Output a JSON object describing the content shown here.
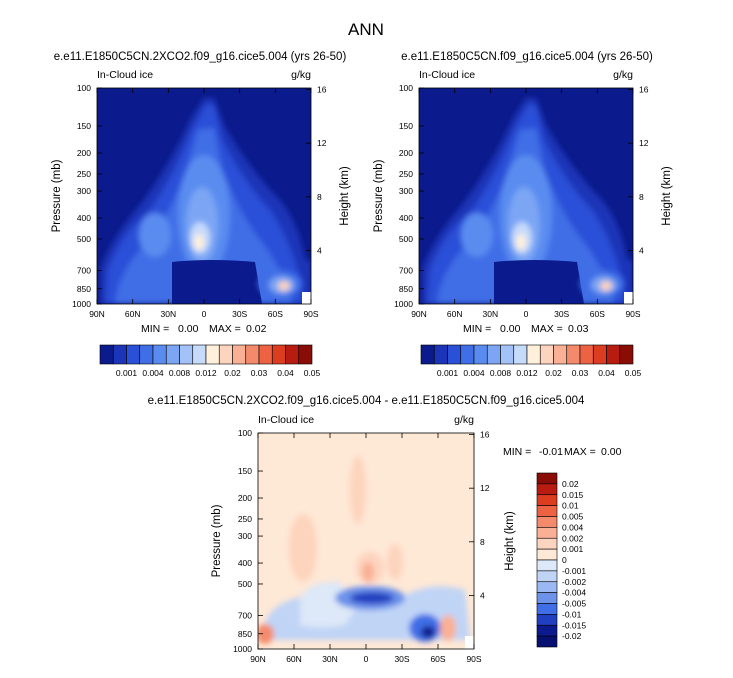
{
  "page_title": "ANN",
  "chart_data": [
    {
      "type": "heatmap",
      "id": "panel1",
      "title": "e.e11.E1850C5CN.2XCO2.f09_g16.cice5.004 (yrs 26-50)",
      "label_left": "In-Cloud ice",
      "label_right": "g/kg",
      "xlabel": "",
      "ylabel": "Pressure (mb)",
      "ylabel_right": "Height (km)",
      "x_ticks": [
        "90N",
        "60N",
        "30N",
        "0",
        "30S",
        "60S",
        "90S"
      ],
      "y_ticks": [
        "100",
        "150",
        "200",
        "250",
        "300",
        "400",
        "500",
        "700",
        "850",
        "1000"
      ],
      "y_ticks_right": [
        "16",
        "12",
        "8",
        "4"
      ],
      "stats": {
        "min_label": "MIN =",
        "min": "0.00",
        "max_label": "MAX =",
        "max": "0.02"
      },
      "colorbar": {
        "orientation": "horizontal",
        "labels": [
          "0.001",
          "0.004",
          "0.008",
          "0.012",
          "0.02",
          "0.03",
          "0.04",
          "0.05"
        ],
        "colors": [
          "#0b1a8c",
          "#1c34b8",
          "#2a50d8",
          "#3f6ee6",
          "#5a8cf0",
          "#7ca6f4",
          "#a3c2f8",
          "#c6dafa",
          "#fff0dc",
          "#fdd4be",
          "#f9b095",
          "#f48a6c",
          "#ee6244",
          "#dc3c20",
          "#b81c10",
          "#8a0c06"
        ]
      },
      "regions": [
        {
          "name": "tropical-core",
          "value": 0.012
        },
        {
          "name": "southern-low-maximum",
          "value": 0.02
        },
        {
          "name": "background",
          "value": 0.0
        }
      ]
    },
    {
      "type": "heatmap",
      "id": "panel2",
      "title": "e.e11.E1850C5CN.f09_g16.cice5.004 (yrs 26-50)",
      "label_left": "In-Cloud ice",
      "label_right": "g/kg",
      "xlabel": "",
      "ylabel": "Pressure (mb)",
      "ylabel_right": "Height (km)",
      "x_ticks": [
        "90N",
        "60N",
        "30N",
        "0",
        "30S",
        "60S",
        "90S"
      ],
      "y_ticks": [
        "100",
        "150",
        "200",
        "250",
        "300",
        "400",
        "500",
        "700",
        "850",
        "1000"
      ],
      "y_ticks_right": [
        "16",
        "12",
        "8",
        "4"
      ],
      "stats": {
        "min_label": "MIN =",
        "min": "0.00",
        "max_label": "MAX =",
        "max": "0.03"
      },
      "colorbar": {
        "orientation": "horizontal",
        "labels": [
          "0.001",
          "0.004",
          "0.008",
          "0.012",
          "0.02",
          "0.03",
          "0.04",
          "0.05"
        ],
        "colors": [
          "#0b1a8c",
          "#1c34b8",
          "#2a50d8",
          "#3f6ee6",
          "#5a8cf0",
          "#7ca6f4",
          "#a3c2f8",
          "#c6dafa",
          "#fff0dc",
          "#fdd4be",
          "#f9b095",
          "#f48a6c",
          "#ee6244",
          "#dc3c20",
          "#b81c10",
          "#8a0c06"
        ]
      },
      "regions": [
        {
          "name": "tropical-core",
          "value": 0.012
        },
        {
          "name": "southern-low-maximum",
          "value": 0.02
        },
        {
          "name": "background",
          "value": 0.0
        }
      ]
    },
    {
      "type": "heatmap",
      "id": "panel3",
      "title": "e.e11.E1850C5CN.2XCO2.f09_g16.cice5.004 - e.e11.E1850C5CN.f09_g16.cice5.004",
      "label_left": "In-Cloud ice",
      "label_right": "g/kg",
      "xlabel": "",
      "ylabel": "Pressure (mb)",
      "ylabel_right": "Height (km)",
      "x_ticks": [
        "90N",
        "60N",
        "30N",
        "0",
        "30S",
        "60S",
        "90S"
      ],
      "y_ticks": [
        "100",
        "150",
        "200",
        "250",
        "300",
        "400",
        "500",
        "700",
        "850",
        "1000"
      ],
      "y_ticks_right": [
        "16",
        "12",
        "8",
        "4"
      ],
      "stats": {
        "min_label": "MIN =",
        "min": "-0.01",
        "max_label": "MAX =",
        "max": "0.00"
      },
      "colorbar": {
        "orientation": "vertical",
        "labels": [
          "0.02",
          "0.015",
          "0.01",
          "0.005",
          "0.004",
          "0.002",
          "0.001",
          "0",
          "-0.001",
          "-0.002",
          "-0.004",
          "-0.005",
          "-0.01",
          "-0.015",
          "-0.02"
        ],
        "colors": [
          "#8a0c06",
          "#b81c10",
          "#dc3c20",
          "#ee6244",
          "#f48a6c",
          "#f9b095",
          "#fdd4be",
          "#fee8d6",
          "#dde8f8",
          "#c0d4f6",
          "#9ab8f2",
          "#6c92ea",
          "#3f6ee6",
          "#2040c0",
          "#0b1a8c",
          "#051070"
        ]
      },
      "regions": [
        {
          "name": "background",
          "value": 0.0005
        },
        {
          "name": "lower-tropics-decrease",
          "value": -0.005
        },
        {
          "name": "southern-low-decrease",
          "value": -0.01
        }
      ]
    }
  ]
}
